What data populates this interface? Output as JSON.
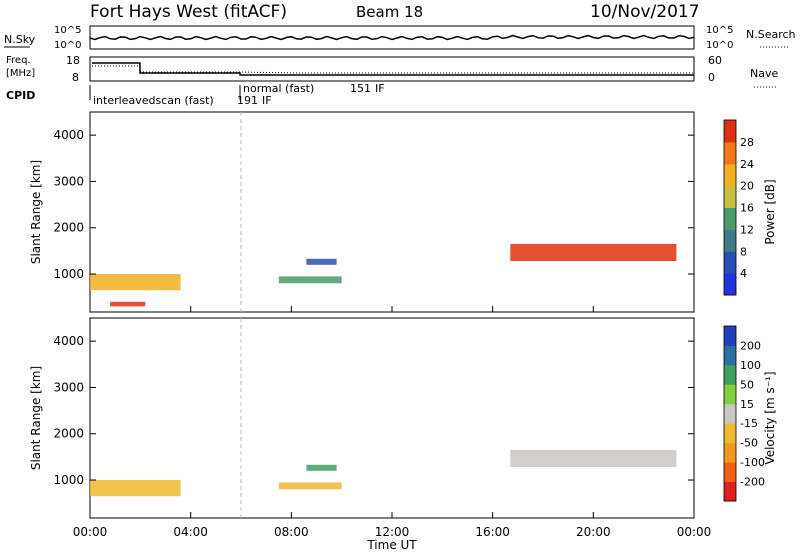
{
  "header": {
    "title": "Fort Hays West (fitACF)",
    "beam": "Beam 18",
    "date": "10/Nov/2017"
  },
  "top_panel": {
    "left_label": "N.Sky",
    "right_label": "N.Search",
    "left_ticks": [
      "10^5",
      "10^0"
    ],
    "right_ticks": [
      "10^5",
      "10^0"
    ]
  },
  "freq_panel": {
    "left_label_line1": "Freq.",
    "left_label_line2": "[MHz]",
    "right_label": "Nave",
    "left_ticks": [
      "18",
      "8"
    ],
    "right_ticks": [
      "60",
      "0"
    ],
    "cpid_label": "CPID",
    "modes": [
      {
        "name": "interleavedscan (fast)",
        "cpid": "191",
        "if": "IF"
      },
      {
        "name": "normal (fast)",
        "cpid": "151",
        "if": "IF"
      }
    ]
  },
  "chart_data": [
    {
      "type": "heatmap",
      "quantity": "Power",
      "xlabel": "Time UT",
      "ylabel": "Slant Range [km]",
      "x_ticks": [
        "00:00",
        "04:00",
        "08:00",
        "12:00",
        "16:00",
        "20:00",
        "00:00"
      ],
      "y_ticks": [
        1000,
        2000,
        3000,
        4000
      ],
      "ylim": [
        180,
        4500
      ],
      "colorbar": {
        "label": "Power [dB]",
        "ticks": [
          4,
          8,
          12,
          16,
          20,
          24,
          28
        ],
        "colors": [
          "#2233dd",
          "#2a4fb8",
          "#3f7a8a",
          "#4a9a6a",
          "#c8c040",
          "#f0b020",
          "#f07818",
          "#e03010"
        ]
      },
      "regions": [
        {
          "t0": 0.0,
          "t1": 3.6,
          "r0": 650,
          "r1": 1000,
          "level": 5
        },
        {
          "t0": 0.8,
          "t1": 2.2,
          "r0": 300,
          "r1": 400,
          "level": 7
        },
        {
          "t0": 7.5,
          "t1": 10.0,
          "r0": 800,
          "r1": 950,
          "level": 3
        },
        {
          "t0": 8.6,
          "t1": 9.8,
          "r0": 1200,
          "r1": 1330,
          "level": 1
        },
        {
          "t0": 16.7,
          "t1": 23.3,
          "r0": 1280,
          "r1": 1650,
          "level": 7
        }
      ]
    },
    {
      "type": "heatmap",
      "quantity": "Velocity",
      "xlabel": "Time UT",
      "ylabel": "Slant Range [km]",
      "x_ticks": [
        "00:00",
        "04:00",
        "08:00",
        "12:00",
        "16:00",
        "20:00",
        "00:00"
      ],
      "y_ticks": [
        1000,
        2000,
        3000,
        4000
      ],
      "ylim": [
        180,
        4500
      ],
      "colorbar": {
        "label": "Velocity [m s⁻¹]",
        "ticks": [
          -200,
          -100,
          -50,
          -15,
          15,
          50,
          100,
          200
        ],
        "colors": [
          "#e02020",
          "#f06010",
          "#f09820",
          "#f0b830",
          "#c8c8c0",
          "#80d040",
          "#40a060",
          "#2a70a0",
          "#2040c0"
        ]
      },
      "regions": [
        {
          "t0": 0.0,
          "t1": 3.6,
          "r0": 650,
          "r1": 1000,
          "level": 3
        },
        {
          "t0": 7.5,
          "t1": 10.0,
          "r0": 800,
          "r1": 950,
          "level": 3
        },
        {
          "t0": 8.6,
          "t1": 9.8,
          "r0": 1200,
          "r1": 1330,
          "level": 6
        },
        {
          "t0": 16.7,
          "t1": 23.3,
          "r0": 1280,
          "r1": 1650,
          "level": 4
        }
      ]
    }
  ]
}
